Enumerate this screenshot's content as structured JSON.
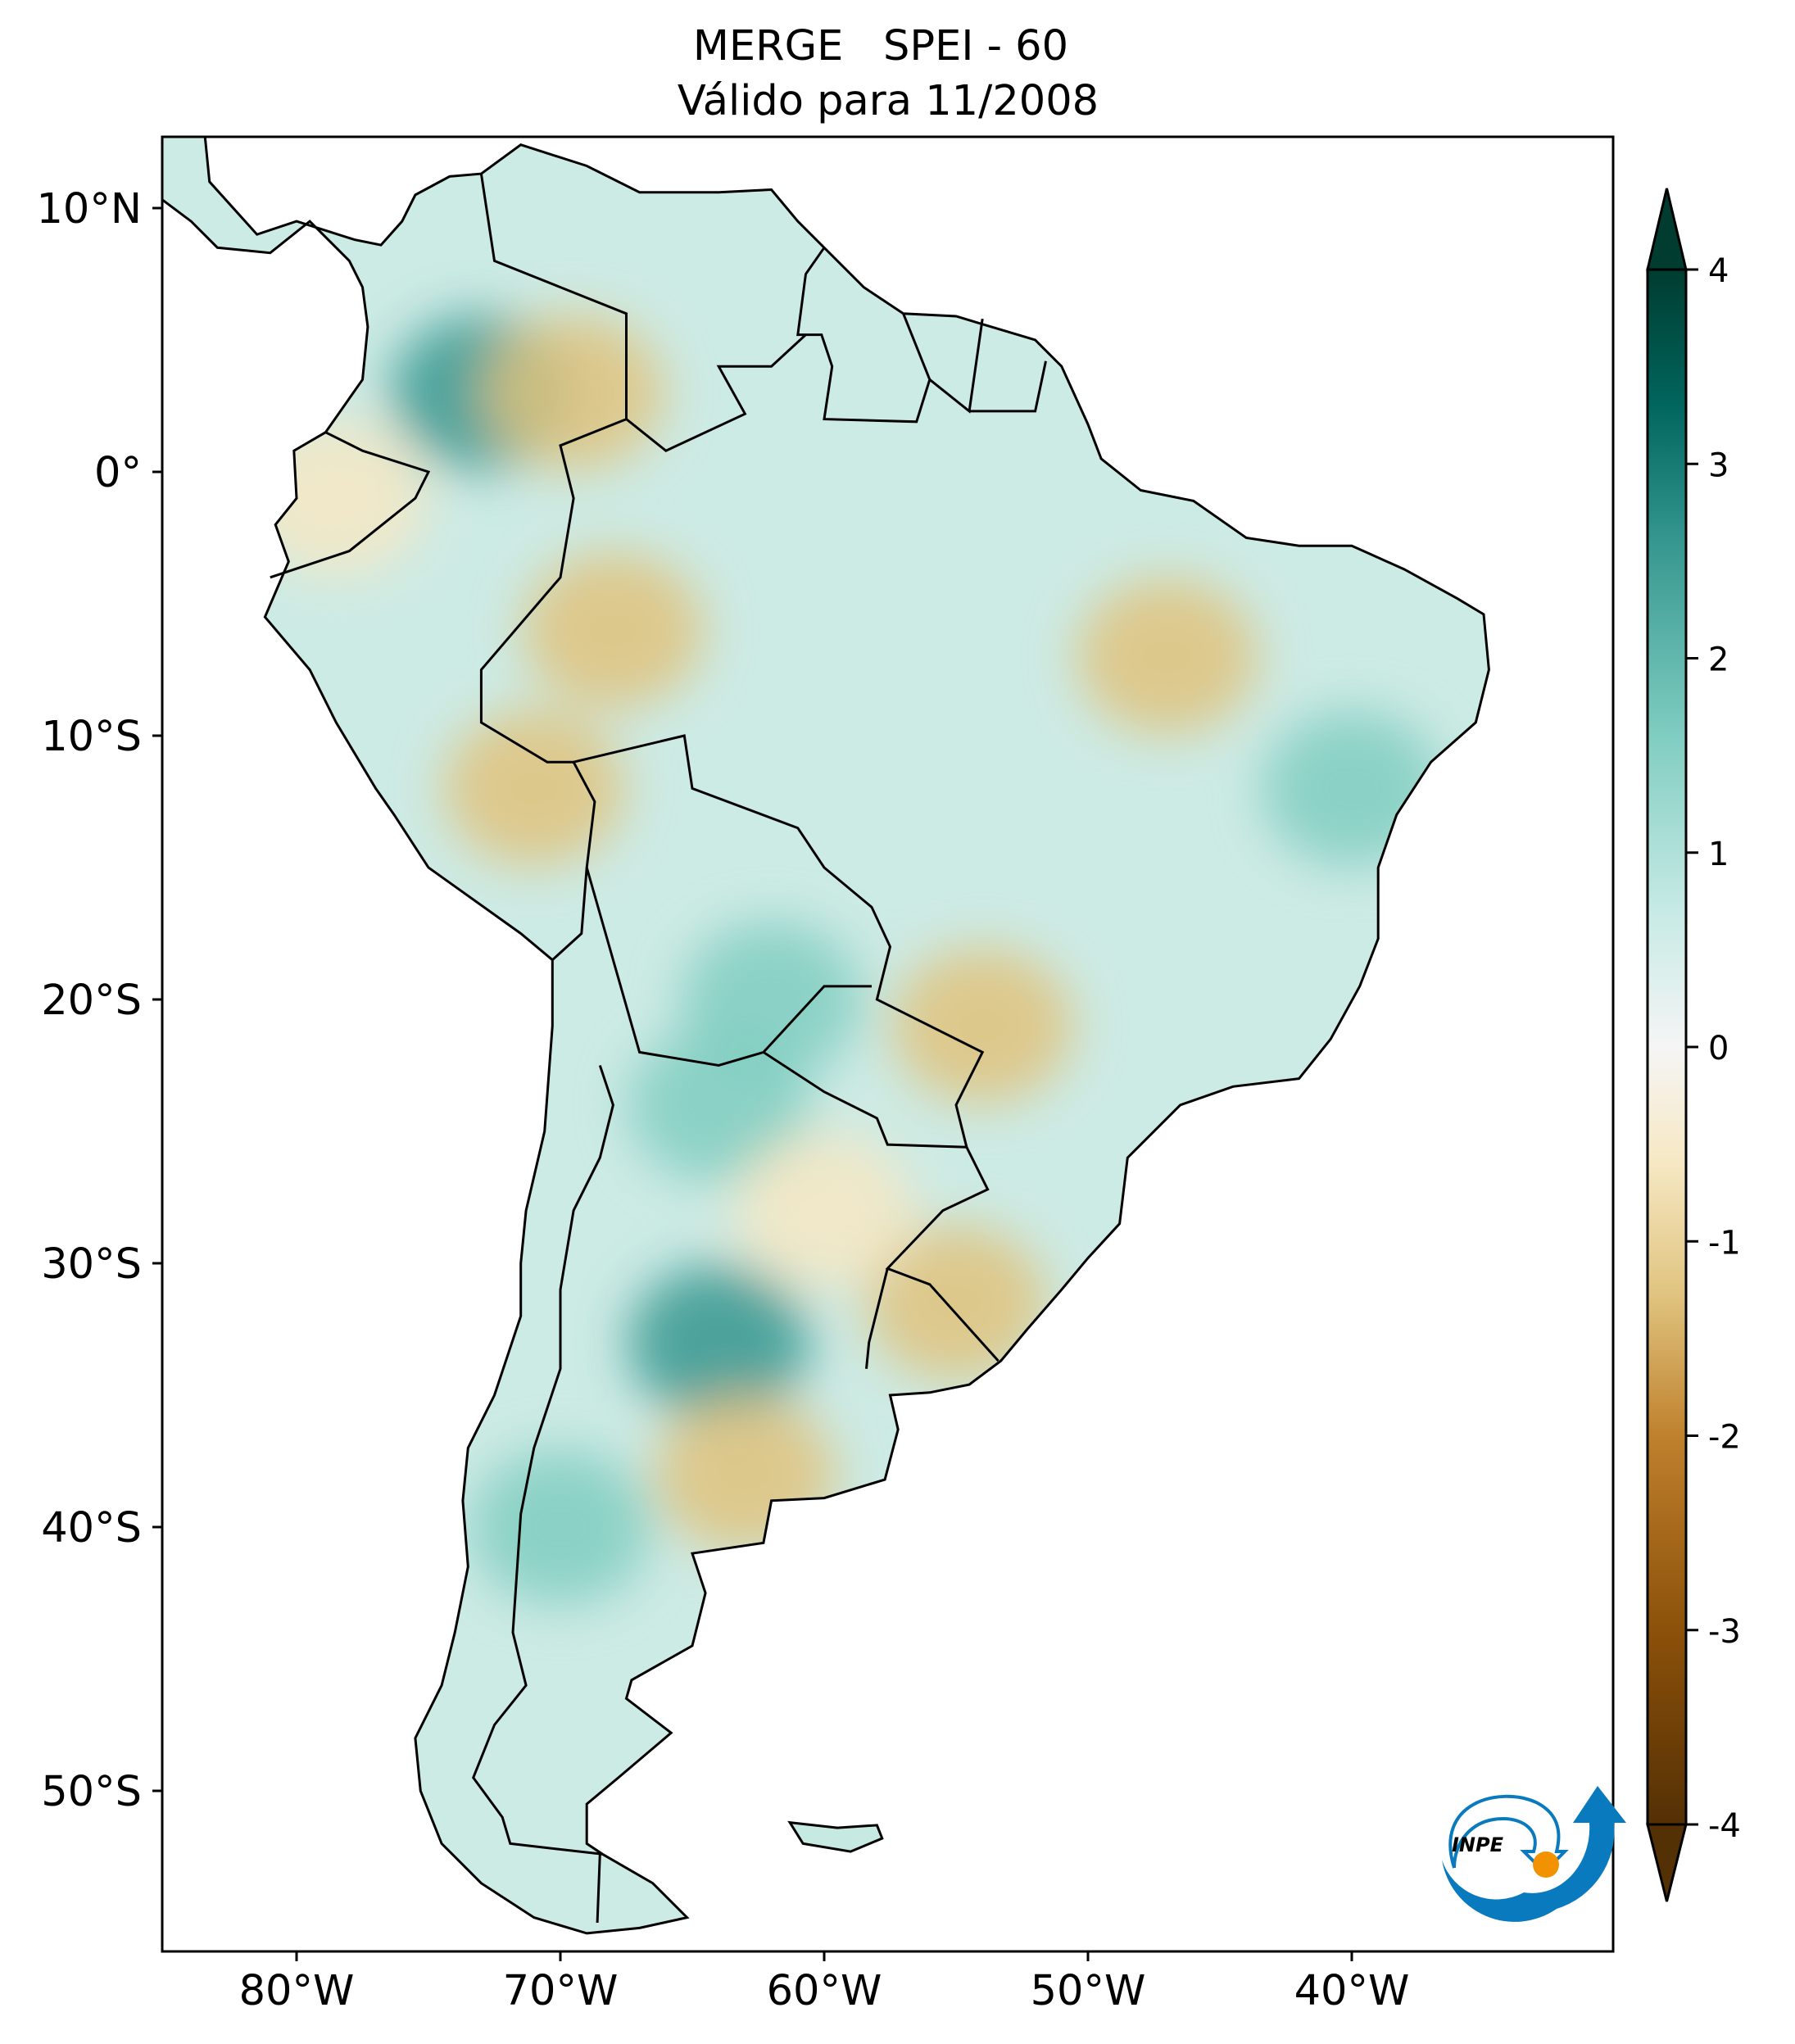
{
  "chart_data": {
    "type": "heatmap",
    "title": "MERGE   SPEI - 60",
    "subtitle": "Válido para 11/2008",
    "region": "South America",
    "lon_range": [
      -85,
      -30
    ],
    "lat_range": [
      -56,
      12.7
    ],
    "lat_ticks": [
      {
        "value": 10,
        "label": "10°N"
      },
      {
        "value": 0,
        "label": "0°"
      },
      {
        "value": -10,
        "label": "10°S"
      },
      {
        "value": -20,
        "label": "20°S"
      },
      {
        "value": -30,
        "label": "30°S"
      },
      {
        "value": -40,
        "label": "40°S"
      },
      {
        "value": -50,
        "label": "50°S"
      }
    ],
    "lon_ticks": [
      {
        "value": -80,
        "label": "80°W"
      },
      {
        "value": -70,
        "label": "70°W"
      },
      {
        "value": -60,
        "label": "60°W"
      },
      {
        "value": -50,
        "label": "50°W"
      },
      {
        "value": -40,
        "label": "40°W"
      }
    ],
    "colorbar": {
      "range": [
        -4,
        4
      ],
      "extend": "both",
      "colormap": "BrBG",
      "ticks": [
        {
          "value": 4,
          "label": "4"
        },
        {
          "value": 3,
          "label": "3"
        },
        {
          "value": 2,
          "label": "2"
        },
        {
          "value": 1,
          "label": "1"
        },
        {
          "value": 0,
          "label": "0"
        },
        {
          "value": -1,
          "label": "-1"
        },
        {
          "value": -2,
          "label": "-2"
        },
        {
          "value": -3,
          "label": "-3"
        },
        {
          "value": -4,
          "label": "-4"
        }
      ],
      "stops": [
        {
          "value": -4,
          "color": "#543005"
        },
        {
          "value": -3,
          "color": "#8c510a"
        },
        {
          "value": -2,
          "color": "#bf812d"
        },
        {
          "value": -1.3,
          "color": "#dfc27d"
        },
        {
          "value": -0.6,
          "color": "#f6e8c3"
        },
        {
          "value": 0,
          "color": "#f5f5f5"
        },
        {
          "value": 0.7,
          "color": "#c7eae5"
        },
        {
          "value": 1.6,
          "color": "#80cdc1"
        },
        {
          "value": 2.6,
          "color": "#35978f"
        },
        {
          "value": 3.3,
          "color": "#01665e"
        },
        {
          "value": 4,
          "color": "#003c30"
        }
      ]
    },
    "anomalies": [
      {
        "lon": -73,
        "lat": 3,
        "value": 2.2
      },
      {
        "lon": -64,
        "lat": -33,
        "value": 2.3
      },
      {
        "lon": -64,
        "lat": -24,
        "value": 1.8
      },
      {
        "lon": -70,
        "lat": -40,
        "value": 1.7
      },
      {
        "lon": -62,
        "lat": -20,
        "value": 1.6
      },
      {
        "lon": -40,
        "lat": -12,
        "value": 1.5
      },
      {
        "lon": -55,
        "lat": -31.5,
        "value": -1.5
      },
      {
        "lon": -63,
        "lat": -38,
        "value": -1.0
      },
      {
        "lon": -69.5,
        "lat": 3,
        "value": -1.1
      },
      {
        "lon": -71,
        "lat": -12,
        "value": -1.5
      },
      {
        "lon": -68,
        "lat": -6,
        "value": -1.0
      },
      {
        "lon": -54,
        "lat": -21,
        "value": -1.0
      },
      {
        "lon": -47,
        "lat": -7,
        "value": -1.0
      },
      {
        "lon": -78.5,
        "lat": -1,
        "value": -0.8
      },
      {
        "lon": -60,
        "lat": -28,
        "value": -0.8
      }
    ]
  },
  "logo": {
    "text": "INPE",
    "blue": "#0a7abf",
    "orange": "#f39200"
  }
}
